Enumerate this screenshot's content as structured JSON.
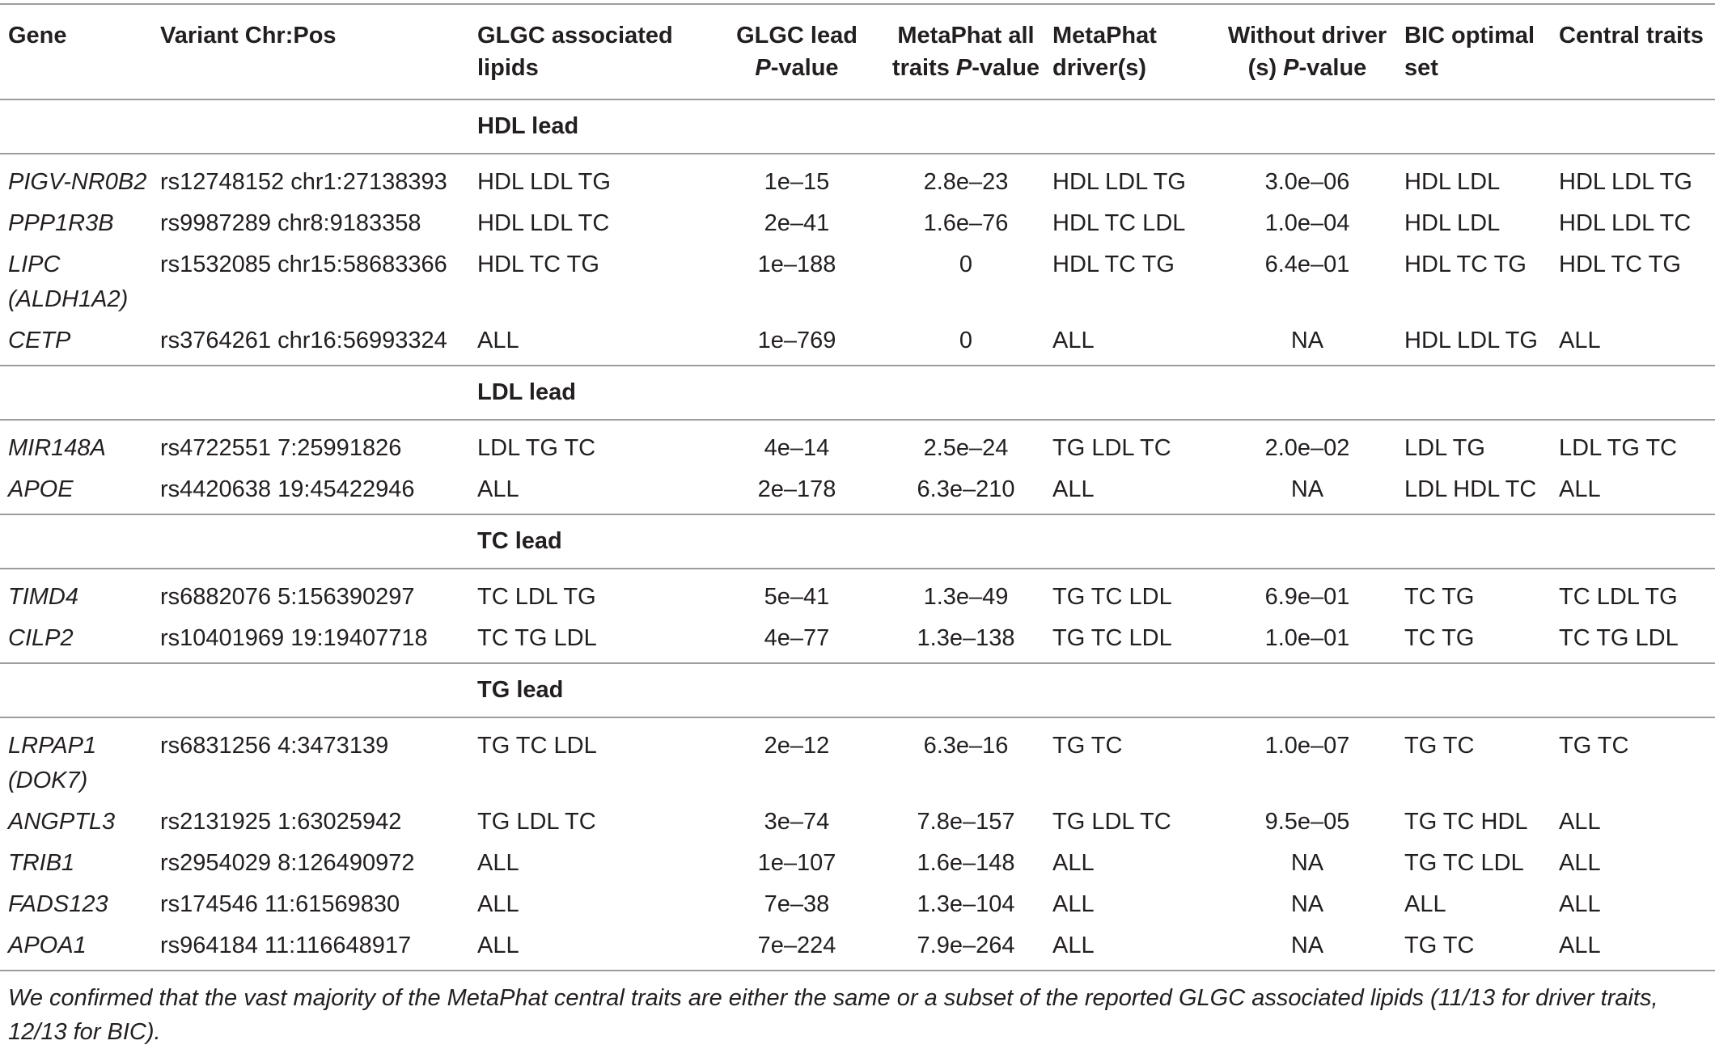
{
  "headers": {
    "gene": "Gene",
    "variant": "Variant Chr:Pos",
    "glgc_lipids": "GLGC associated lipids",
    "glgc_p_pre": "GLGC lead ",
    "glgc_p_italic": "P",
    "glgc_p_post": "-value",
    "metaphat_p_pre": "MetaPhat all traits ",
    "metaphat_p_italic": "P",
    "metaphat_p_post": "-value",
    "drivers": "MetaPhat driver(s)",
    "without_pre": "Without driver (s) ",
    "without_italic": "P",
    "without_post": "-value",
    "bic": "BIC optimal set",
    "central": "Central traits"
  },
  "sections": [
    {
      "title": "HDL lead",
      "rows": [
        {
          "gene": "PIGV-NR0B2",
          "variant": "rs12748152 chr1:27138393",
          "lipids": "HDL LDL TG",
          "glgc_p": "1e–15",
          "metaphat_p": "2.8e–23",
          "drivers": "HDL LDL TG",
          "without_p": "3.0e–06",
          "bic": "HDL LDL",
          "central": "HDL LDL TG"
        },
        {
          "gene": "PPP1R3B",
          "variant": "rs9987289 chr8:9183358",
          "lipids": "HDL LDL TC",
          "glgc_p": "2e–41",
          "metaphat_p": "1.6e–76",
          "drivers": "HDL TC LDL",
          "without_p": "1.0e–04",
          "bic": "HDL LDL",
          "central": "HDL LDL TC"
        },
        {
          "gene": "LIPC (ALDH1A2)",
          "variant": "rs1532085 chr15:58683366",
          "lipids": "HDL TC TG",
          "glgc_p": "1e–188",
          "metaphat_p": "0",
          "drivers": "HDL TC TG",
          "without_p": "6.4e–01",
          "bic": "HDL TC TG",
          "central": "HDL TC TG"
        },
        {
          "gene": "CETP",
          "variant": "rs3764261 chr16:56993324",
          "lipids": "ALL",
          "glgc_p": "1e–769",
          "metaphat_p": "0",
          "drivers": "ALL",
          "without_p": "NA",
          "bic": "HDL LDL TG",
          "central": "ALL"
        }
      ]
    },
    {
      "title": "LDL lead",
      "rows": [
        {
          "gene": "MIR148A",
          "variant": "rs4722551 7:25991826",
          "lipids": "LDL TG TC",
          "glgc_p": "4e–14",
          "metaphat_p": "2.5e–24",
          "drivers": "TG LDL TC",
          "without_p": "2.0e–02",
          "bic": "LDL TG",
          "central": "LDL TG TC"
        },
        {
          "gene": "APOE",
          "variant": "rs4420638 19:45422946",
          "lipids": "ALL",
          "glgc_p": "2e–178",
          "metaphat_p": "6.3e–210",
          "drivers": "ALL",
          "without_p": "NA",
          "bic": "LDL HDL TC",
          "central": "ALL"
        }
      ]
    },
    {
      "title": "TC lead",
      "rows": [
        {
          "gene": "TIMD4",
          "variant": "rs6882076 5:156390297",
          "lipids": "TC LDL TG",
          "glgc_p": "5e–41",
          "metaphat_p": "1.3e–49",
          "drivers": "TG TC LDL",
          "without_p": "6.9e–01",
          "bic": "TC TG",
          "central": "TC LDL TG"
        },
        {
          "gene": "CILP2",
          "variant": "rs10401969 19:19407718",
          "lipids": "TC TG LDL",
          "glgc_p": "4e–77",
          "metaphat_p": "1.3e–138",
          "drivers": "TG TC LDL",
          "without_p": "1.0e–01",
          "bic": "TC TG",
          "central": "TC TG LDL"
        }
      ]
    },
    {
      "title": "TG lead",
      "rows": [
        {
          "gene": "LRPAP1 (DOK7)",
          "variant": "rs6831256 4:3473139",
          "lipids": "TG TC LDL",
          "glgc_p": "2e–12",
          "metaphat_p": "6.3e–16",
          "drivers": "TG TC",
          "without_p": "1.0e–07",
          "bic": "TG TC",
          "central": "TG TC"
        },
        {
          "gene": "ANGPTL3",
          "variant": "rs2131925 1:63025942",
          "lipids": "TG LDL TC",
          "glgc_p": "3e–74",
          "metaphat_p": "7.8e–157",
          "drivers": "TG LDL TC",
          "without_p": "9.5e–05",
          "bic": "TG TC HDL",
          "central": "ALL"
        },
        {
          "gene": "TRIB1",
          "variant": "rs2954029 8:126490972",
          "lipids": "ALL",
          "glgc_p": "1e–107",
          "metaphat_p": "1.6e–148",
          "drivers": "ALL",
          "without_p": "NA",
          "bic": "TG TC LDL",
          "central": "ALL"
        },
        {
          "gene": "FADS123",
          "variant": "rs174546 11:61569830",
          "lipids": "ALL",
          "glgc_p": "7e–38",
          "metaphat_p": "1.3e–104",
          "drivers": "ALL",
          "without_p": "NA",
          "bic": "ALL",
          "central": "ALL"
        },
        {
          "gene": "APOA1",
          "variant": "rs964184 11:116648917",
          "lipids": "ALL",
          "glgc_p": "7e–224",
          "metaphat_p": "7.9e–264",
          "drivers": "ALL",
          "without_p": "NA",
          "bic": "TG TC",
          "central": "ALL"
        }
      ]
    }
  ],
  "footnote": "We confirmed that the vast majority of the MetaPhat central traits are either the same or a subset of the reported GLGC associated lipids (11/13 for driver traits, 12/13 for BIC)."
}
